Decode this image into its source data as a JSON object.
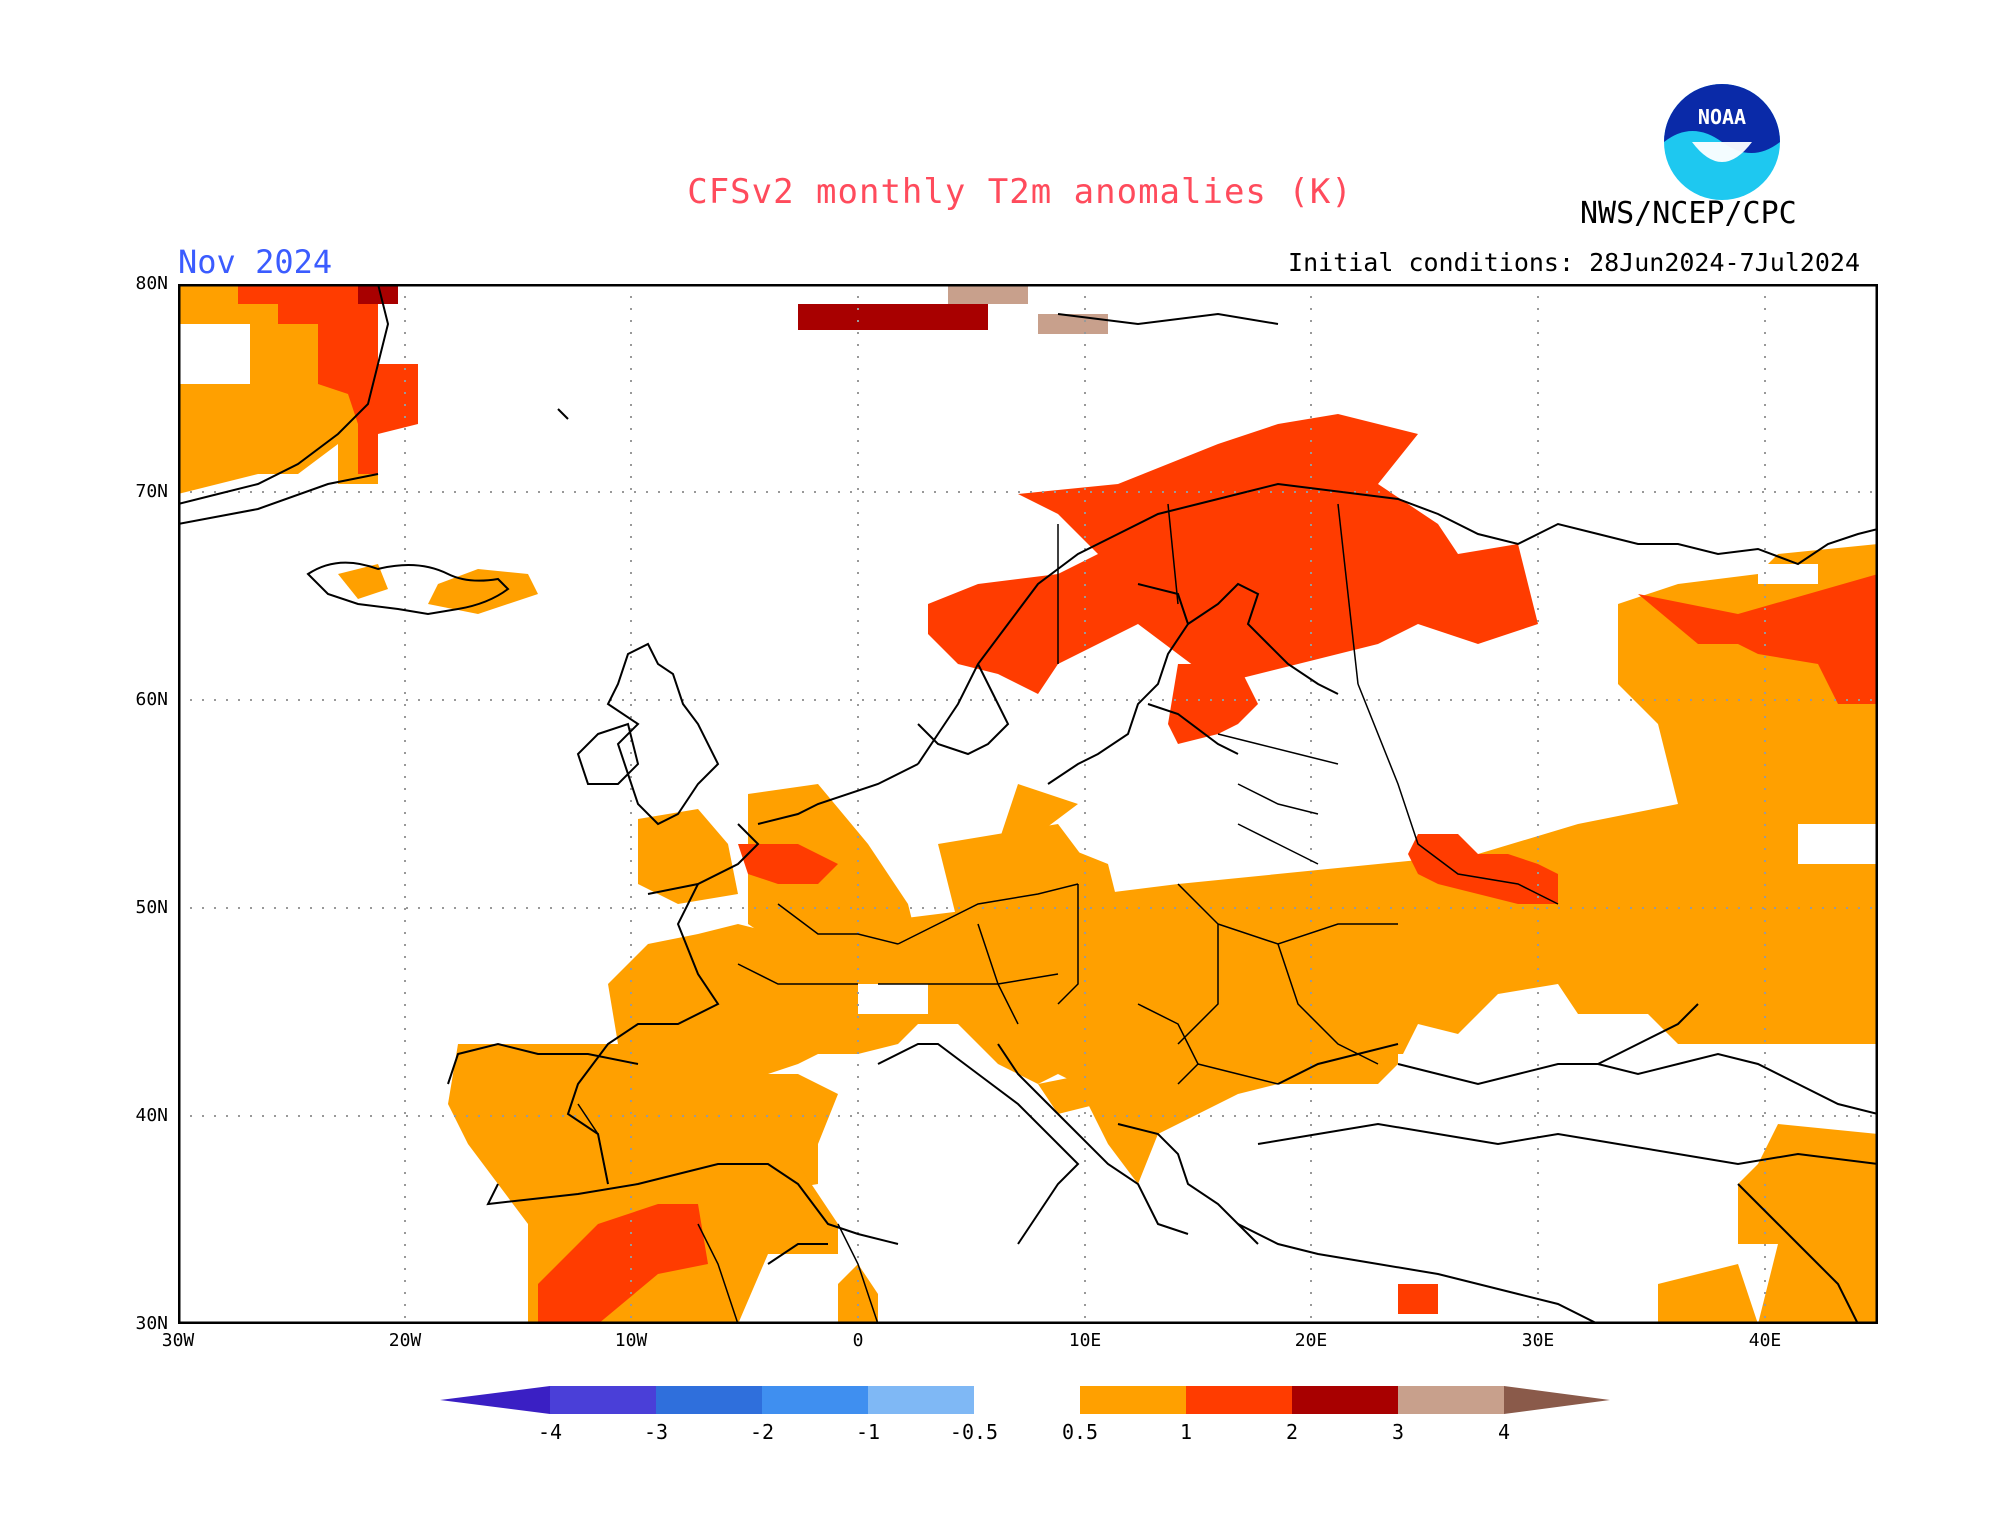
{
  "title": "CFSv2 monthly T2m anomalies (K)",
  "month": "Nov 2024",
  "initial_conditions": "Initial conditions: 28Jun2024-7Jul2024",
  "agency": "NWS/NCEP/CPC",
  "logo_text": "NOAA",
  "map": {
    "lat_ticks": [
      "80N",
      "70N",
      "60N",
      "50N",
      "40N",
      "30N"
    ],
    "lon_ticks": [
      "30W",
      "20W",
      "10W",
      "0",
      "10E",
      "20E",
      "30E",
      "40E"
    ],
    "lon_range": [
      -30,
      45
    ],
    "lat_range": [
      30,
      80
    ],
    "grid": "dotted"
  },
  "colorbar": {
    "labels": [
      "-4",
      "-3",
      "-2",
      "-1",
      "-0.5",
      "0.5",
      "1",
      "2",
      "3",
      "4"
    ],
    "colors": [
      "#3a1fc4",
      "#4a3fd8",
      "#2f6fdc",
      "#3f8ff0",
      "#7fb8f5",
      "#ffffff",
      "#ffa500",
      "#ff4000",
      "#a00000",
      "#c8a090",
      "#8a5a4a"
    ]
  },
  "colors": {
    "anom_05_1": "#ffa000",
    "anom_1_2": "#ff3c00",
    "anom_2_3": "#a80000",
    "anom_3_4": "#c8a08c"
  }
}
